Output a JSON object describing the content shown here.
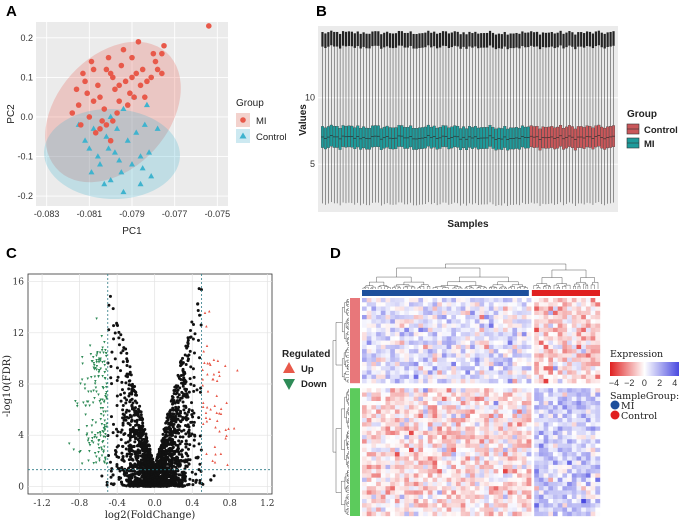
{
  "colors": {
    "mi": "#E8594A",
    "control": "#3FB3CE",
    "mi_box": "#C9575A",
    "control_box": "#1E9B9B",
    "up": "#E8594A",
    "down": "#2E8B57",
    "ns": "#111111",
    "ggplot_bg": "#EBEBEB",
    "heat_pos": "#4A4AE0",
    "heat_neg": "#E02020",
    "group_mi_bar": "#1C4F9C",
    "group_control_bar": "#E02020",
    "row_up_bar": "#E8777A",
    "row_down_bar": "#5CCB5C"
  },
  "chart_data": [
    {
      "panel": "A",
      "type": "scatter",
      "title": "",
      "xlabel": "PC1",
      "ylabel": "PC2",
      "xlim": [
        -0.0835,
        -0.0745
      ],
      "ylim": [
        -0.225,
        0.24
      ],
      "xticks": [
        "-0.083",
        "-0.081",
        "-0.079",
        "-0.077",
        "-0.075"
      ],
      "yticks": [
        "0.2",
        "0.1",
        "0.0",
        "-0.1",
        "-0.2"
      ],
      "legend_title": "Group",
      "legend": [
        "MI",
        "Control"
      ],
      "series": [
        {
          "name": "MI",
          "shape": "circle",
          "points": [
            [
              -0.0812,
              0.09
            ],
            [
              -0.0808,
              0.12
            ],
            [
              -0.0805,
              0.05
            ],
            [
              -0.08,
              0.11
            ],
            [
              -0.0795,
              0.13
            ],
            [
              -0.079,
              0.15
            ],
            [
              -0.0802,
              -0.02
            ],
            [
              -0.081,
              0.0
            ],
            [
              -0.0815,
              0.03
            ],
            [
              -0.0798,
              0.07
            ],
            [
              -0.0793,
              0.09
            ],
            [
              -0.0788,
              0.11
            ],
            [
              -0.0785,
              0.12
            ],
            [
              -0.078,
              0.16
            ],
            [
              -0.0803,
              0.02
            ],
            [
              -0.0807,
              -0.04
            ],
            [
              -0.08,
              -0.06
            ],
            [
              -0.0796,
              0.04
            ],
            [
              -0.0811,
              0.06
            ],
            [
              -0.0806,
              0.08
            ],
            [
              -0.0799,
              0.1
            ],
            [
              -0.0791,
              0.06
            ],
            [
              -0.0786,
              0.08
            ],
            [
              -0.0781,
              0.1
            ],
            [
              -0.0778,
              0.12
            ],
            [
              -0.0776,
              0.16
            ],
            [
              -0.0775,
              0.18
            ],
            [
              -0.0818,
              0.01
            ],
            [
              -0.0804,
              -0.01
            ],
            [
              -0.0797,
              0.01
            ],
            [
              -0.0792,
              0.03
            ],
            [
              -0.0789,
              0.05
            ],
            [
              -0.0809,
              0.14
            ],
            [
              -0.0801,
              0.15
            ],
            [
              -0.0794,
              0.17
            ],
            [
              -0.0787,
              0.19
            ],
            [
              -0.0814,
              -0.02
            ],
            [
              -0.0805,
              -0.03
            ],
            [
              -0.0783,
              0.09
            ],
            [
              -0.0779,
              0.14
            ],
            [
              -0.0784,
              0.05
            ],
            [
              -0.0813,
              0.11
            ],
            [
              -0.0808,
              0.04
            ],
            [
              -0.0799,
              -0.01
            ],
            [
              -0.0776,
              0.11
            ],
            [
              -0.0754,
              0.23
            ],
            [
              -0.0802,
              0.12
            ],
            [
              -0.0796,
              0.08
            ],
            [
              -0.079,
              0.1
            ],
            [
              -0.0816,
              0.07
            ]
          ]
        },
        {
          "name": "Control",
          "shape": "triangle",
          "points": [
            [
              -0.0815,
              -0.02
            ],
            [
              -0.081,
              -0.08
            ],
            [
              -0.0805,
              -0.12
            ],
            [
              -0.08,
              -0.16
            ],
            [
              -0.0795,
              -0.14
            ],
            [
              -0.079,
              -0.12
            ],
            [
              -0.0786,
              -0.1
            ],
            [
              -0.0782,
              -0.09
            ],
            [
              -0.0781,
              -0.15
            ],
            [
              -0.0786,
              -0.17
            ],
            [
              -0.0798,
              -0.09
            ],
            [
              -0.0802,
              -0.05
            ],
            [
              -0.0808,
              -0.03
            ],
            [
              -0.0812,
              -0.06
            ],
            [
              -0.0797,
              -0.03
            ],
            [
              -0.0792,
              -0.06
            ],
            [
              -0.0788,
              -0.04
            ],
            [
              -0.0784,
              -0.02
            ],
            [
              -0.0803,
              -0.17
            ],
            [
              -0.0794,
              -0.19
            ],
            [
              -0.0789,
              0.05
            ],
            [
              -0.0794,
              0.02
            ],
            [
              -0.08,
              0.0
            ],
            [
              -0.0785,
              -0.13
            ],
            [
              -0.0806,
              -0.1
            ],
            [
              -0.0783,
              0.03
            ],
            [
              -0.0778,
              -0.03
            ],
            [
              -0.0801,
              -0.08
            ],
            [
              -0.0809,
              -0.14
            ],
            [
              -0.0796,
              -0.11
            ]
          ]
        }
      ]
    },
    {
      "panel": "B",
      "type": "box",
      "title": "",
      "xlabel": "Samples",
      "ylabel": "Values",
      "ylim": [
        1.4,
        15.4
      ],
      "yticks": [
        "5",
        "10"
      ],
      "ytick_values": [
        5,
        10
      ],
      "legend_title": "Group",
      "legend": [
        "Control",
        "MI"
      ],
      "groups": [
        {
          "name": "MI",
          "samples": 71,
          "q1": 6.2,
          "median": 7.0,
          "q3": 7.8,
          "whisker_low": 2.0,
          "whisker_high": 13.8,
          "outlier_top": 14.6
        },
        {
          "name": "Control",
          "samples": 29,
          "q1": 6.2,
          "median": 7.0,
          "q3": 7.8,
          "whisker_low": 2.0,
          "whisker_high": 13.8,
          "outlier_top": 14.6
        }
      ]
    },
    {
      "panel": "C",
      "type": "scatter",
      "title": "",
      "xlabel": "log2(FoldChange)",
      "ylabel": "-log10(FDR)",
      "xlim": [
        -1.35,
        1.25
      ],
      "ylim": [
        -0.6,
        16.6
      ],
      "xticks": [
        "-1.2",
        "-0.8",
        "-0.4",
        "0.0",
        "0.4",
        "0.8",
        "1.2"
      ],
      "xtick_values": [
        -1.2,
        -0.8,
        -0.4,
        0.0,
        0.4,
        0.8,
        1.2
      ],
      "yticks": [
        "0",
        "4",
        "8",
        "12",
        "16"
      ],
      "ytick_values": [
        0,
        4,
        8,
        12,
        16
      ],
      "fc_threshold": [
        -0.5,
        0.5
      ],
      "fdr_threshold": 1.3,
      "legend_title": "Regulated",
      "legend": [
        "Up",
        "Down"
      ],
      "annotation": "volcano plot: thousands of non-significant genes (black) in a V shape, down-regulated (green) left of -0.5, up-regulated (red) right of 0.5"
    },
    {
      "panel": "D",
      "type": "heatmap",
      "title": "",
      "legend_title": "Expression",
      "color_ticks": [
        "−4",
        "−2",
        "0",
        "2",
        "4"
      ],
      "color_range": [
        -4,
        4
      ],
      "sample_group_title": "SampleGroup:",
      "sample_groups": [
        "MI",
        "Control"
      ],
      "columns": {
        "MI": 71,
        "Control": 29
      },
      "row_blocks": [
        {
          "name": "up_block",
          "rows": 40
        },
        {
          "name": "down_block",
          "rows": 60
        }
      ]
    }
  ]
}
